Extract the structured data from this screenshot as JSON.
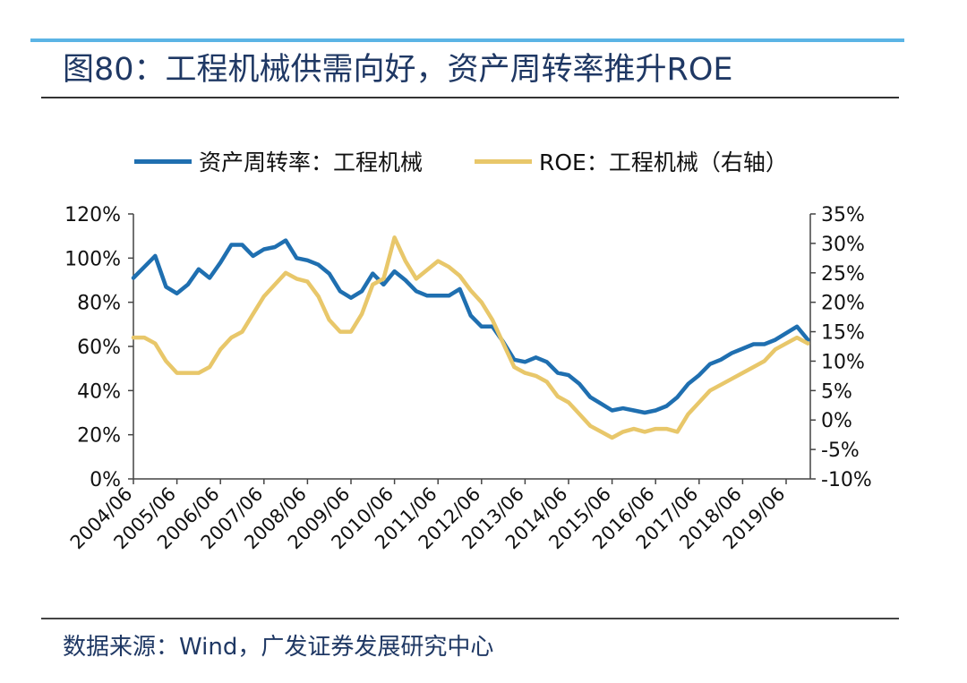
{
  "header": {
    "title": "图80：工程机械供需向好，资产周转率推升ROE"
  },
  "footer": {
    "source": "数据来源：Wind，广发证券发展研究中心"
  },
  "colors": {
    "series_1": "#1f6fb0",
    "series_2": "#e8c76a",
    "accent_rule": "#5bb4e5",
    "title": "#1f3864"
  },
  "chart_data": {
    "type": "line",
    "title": "",
    "xlabel": "",
    "ylabel": "",
    "grid": false,
    "legend_position": "top",
    "x_tick_labels": [
      "2004/06",
      "2005/06",
      "2006/06",
      "2007/06",
      "2008/06",
      "2009/06",
      "2010/06",
      "2011/06",
      "2012/06",
      "2013/06",
      "2014/06",
      "2015/06",
      "2016/06",
      "2017/06",
      "2018/06",
      "2019/06"
    ],
    "left_axis": {
      "ylim": [
        0,
        120
      ],
      "ticks": [
        "0%",
        "20%",
        "40%",
        "60%",
        "80%",
        "100%",
        "120%"
      ]
    },
    "right_axis": {
      "ylim": [
        -10,
        35
      ],
      "ticks": [
        "-10%",
        "-5%",
        "0%",
        "5%",
        "10%",
        "15%",
        "20%",
        "25%",
        "30%",
        "35%"
      ]
    },
    "x": [
      "2004/06",
      "2004/09",
      "2004/12",
      "2005/03",
      "2005/06",
      "2005/09",
      "2005/12",
      "2006/03",
      "2006/06",
      "2006/09",
      "2006/12",
      "2007/03",
      "2007/06",
      "2007/09",
      "2007/12",
      "2008/03",
      "2008/06",
      "2008/09",
      "2008/12",
      "2009/03",
      "2009/06",
      "2009/09",
      "2009/12",
      "2010/03",
      "2010/06",
      "2010/09",
      "2010/12",
      "2011/03",
      "2011/06",
      "2011/09",
      "2011/12",
      "2012/03",
      "2012/06",
      "2012/09",
      "2012/12",
      "2013/03",
      "2013/06",
      "2013/09",
      "2013/12",
      "2014/03",
      "2014/06",
      "2014/09",
      "2014/12",
      "2015/03",
      "2015/06",
      "2015/09",
      "2015/12",
      "2016/03",
      "2016/06",
      "2016/09",
      "2016/12",
      "2017/03",
      "2017/06",
      "2017/09",
      "2017/12",
      "2018/03",
      "2018/06",
      "2018/09",
      "2018/12",
      "2019/03",
      "2019/06",
      "2019/09",
      "2019/12"
    ],
    "series": [
      {
        "name": "资产周转率：工程机械",
        "axis": "left",
        "values": [
          91,
          96,
          101,
          87,
          84,
          88,
          95,
          91,
          98,
          106,
          106,
          101,
          104,
          105,
          108,
          100,
          99,
          97,
          93,
          85,
          82,
          85,
          93,
          88,
          94,
          90,
          85,
          83,
          83,
          83,
          86,
          74,
          69,
          69,
          62,
          54,
          53,
          55,
          53,
          48,
          47,
          43,
          37,
          34,
          31,
          32,
          31,
          30,
          31,
          33,
          37,
          43,
          47,
          52,
          54,
          57,
          59,
          61,
          61,
          63,
          66,
          69,
          63
        ]
      },
      {
        "name": "ROE：工程机械（右轴）",
        "axis": "right",
        "values": [
          14,
          14,
          13,
          10,
          8,
          8,
          8,
          9,
          12,
          14,
          15,
          18,
          21,
          23,
          25,
          24,
          23.5,
          21,
          17,
          15,
          15,
          18,
          23,
          24,
          31,
          27,
          24,
          25.5,
          27,
          26,
          24.5,
          22,
          20,
          17,
          13,
          9,
          8,
          7.5,
          6.5,
          4,
          3,
          1,
          -1,
          -2,
          -3,
          -2,
          -1.5,
          -2,
          -1.5,
          -1.5,
          -2,
          1,
          3,
          5,
          6,
          7,
          8,
          9,
          10,
          12,
          13,
          14,
          13
        ]
      }
    ]
  }
}
